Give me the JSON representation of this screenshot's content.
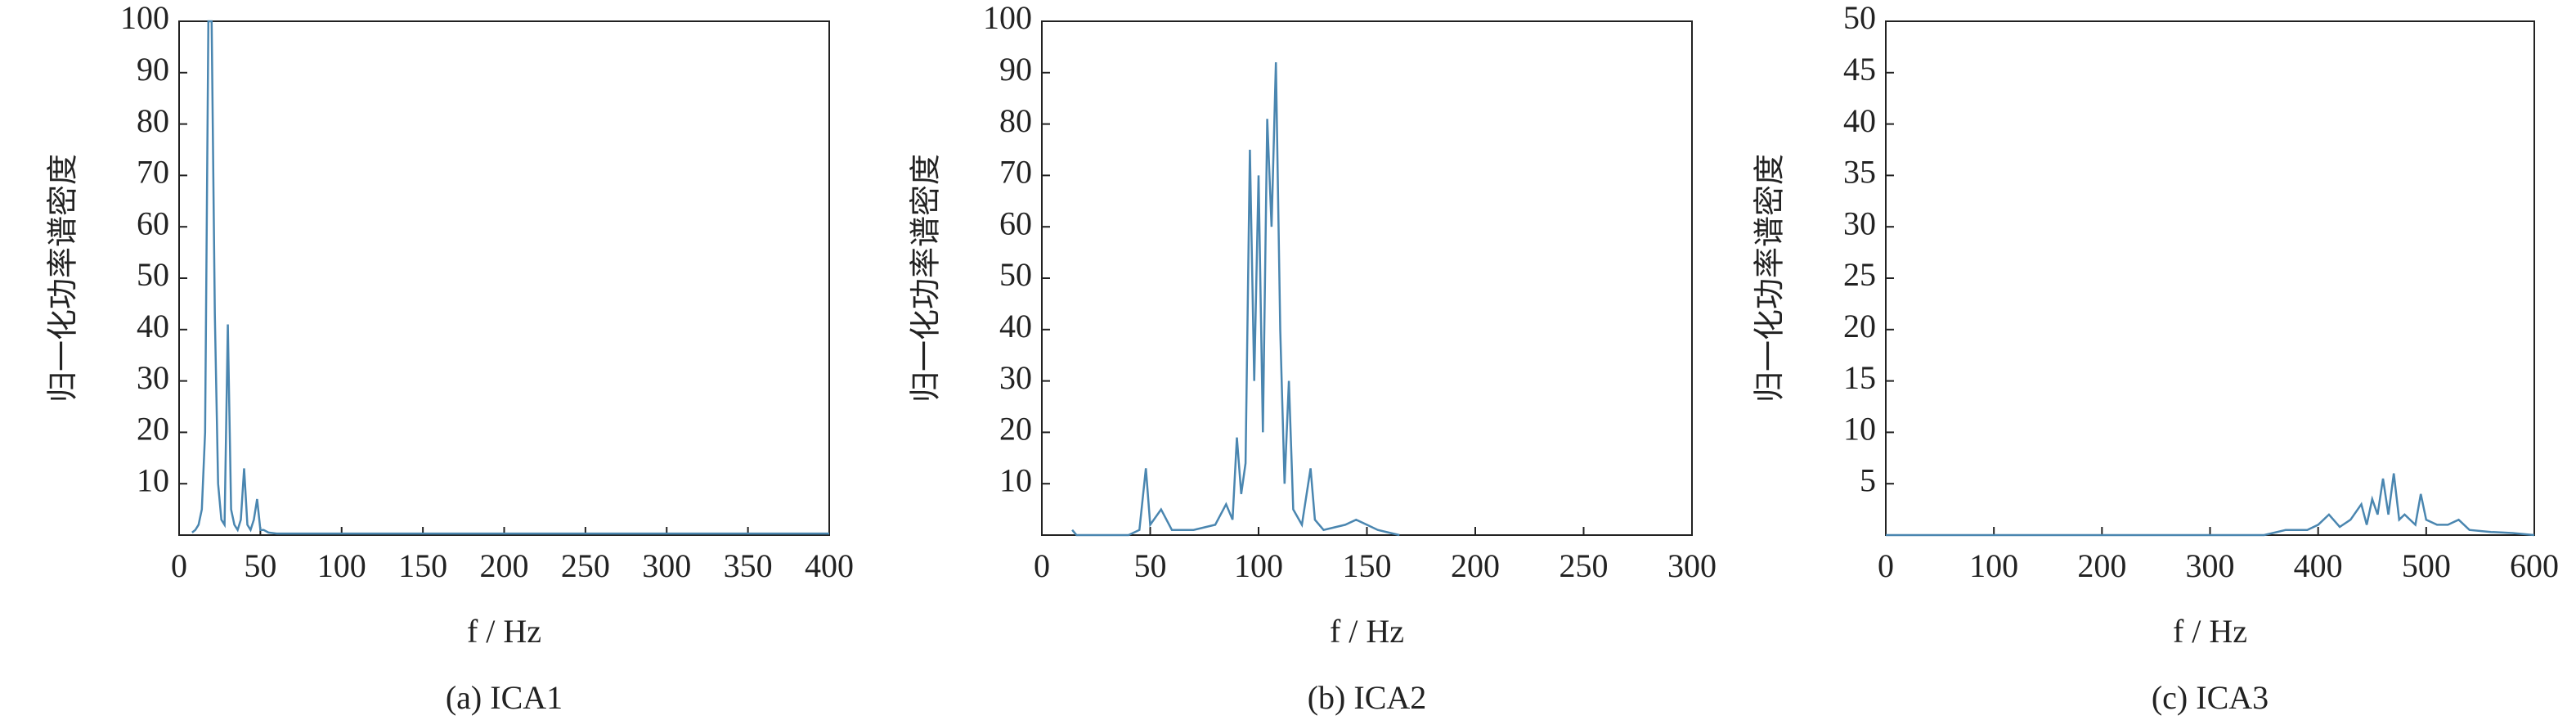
{
  "chart_data": [
    {
      "type": "line",
      "title": "(a) ICA1",
      "xlabel": "f / Hz",
      "ylabel": "归一化功率谱密度",
      "x": [
        8,
        10,
        12,
        14,
        16,
        18,
        20,
        22,
        24,
        26,
        28,
        30,
        32,
        34,
        36,
        38,
        40,
        42,
        44,
        46,
        48,
        50,
        52,
        55,
        60,
        400
      ],
      "series": [
        {
          "color": "#4a86b0",
          "values": [
            0.5,
            1,
            2,
            5,
            20,
            100,
            100,
            43,
            10,
            3,
            2,
            41,
            5,
            2,
            1,
            3,
            13,
            2,
            1,
            3,
            7,
            1,
            1,
            0.5,
            0.3,
            0.3
          ]
        }
      ],
      "xlim": [
        0,
        400
      ],
      "xticks": [
        0,
        50,
        100,
        150,
        200,
        250,
        300,
        350,
        400
      ],
      "ylim": [
        0,
        100
      ],
      "yticks": [
        10,
        20,
        30,
        40,
        50,
        60,
        70,
        80,
        90,
        100
      ]
    },
    {
      "type": "line",
      "title": "(b) ICA2",
      "xlabel": "f / Hz",
      "ylabel": "归一化功率谱密度",
      "x": [
        14,
        16,
        40,
        45,
        48,
        50,
        55,
        60,
        70,
        80,
        85,
        88,
        90,
        92,
        94,
        96,
        98,
        100,
        102,
        104,
        106,
        108,
        110,
        112,
        114,
        116,
        120,
        124,
        126,
        130,
        140,
        145,
        150,
        155,
        160,
        165
      ],
      "series": [
        {
          "color": "#4a86b0",
          "values": [
            1,
            0,
            0,
            1,
            13,
            2,
            5,
            1,
            1,
            2,
            6,
            3,
            19,
            8,
            14,
            75,
            30,
            70,
            20,
            81,
            60,
            92,
            40,
            10,
            30,
            5,
            2,
            13,
            3,
            1,
            2,
            3,
            2,
            1,
            0.5,
            0
          ]
        }
      ],
      "xlim": [
        0,
        300
      ],
      "xticks": [
        0,
        50,
        100,
        150,
        200,
        250,
        300
      ],
      "ylim": [
        0,
        100
      ],
      "yticks": [
        10,
        20,
        30,
        40,
        50,
        60,
        70,
        80,
        90,
        100
      ]
    },
    {
      "type": "line",
      "title": "(c) ICA3",
      "xlabel": "f / Hz",
      "ylabel": "归一化功率谱密度",
      "x": [
        0,
        350,
        370,
        390,
        400,
        410,
        420,
        430,
        440,
        445,
        450,
        455,
        460,
        465,
        470,
        475,
        480,
        490,
        495,
        500,
        510,
        520,
        530,
        540,
        560,
        580,
        600
      ],
      "series": [
        {
          "color": "#4a86b0",
          "values": [
            0,
            0,
            0.5,
            0.5,
            1,
            2,
            0.8,
            1.5,
            3,
            1,
            3.5,
            2,
            5.5,
            2,
            6,
            1.5,
            2,
            1,
            4,
            1.5,
            1,
            1,
            1.5,
            0.5,
            0.3,
            0.2,
            0
          ]
        }
      ],
      "xlim": [
        0,
        600
      ],
      "xticks": [
        0,
        100,
        200,
        300,
        400,
        500,
        600
      ],
      "ylim": [
        0,
        50
      ],
      "yticks": [
        5,
        10,
        15,
        20,
        25,
        30,
        35,
        40,
        45,
        50
      ]
    }
  ]
}
